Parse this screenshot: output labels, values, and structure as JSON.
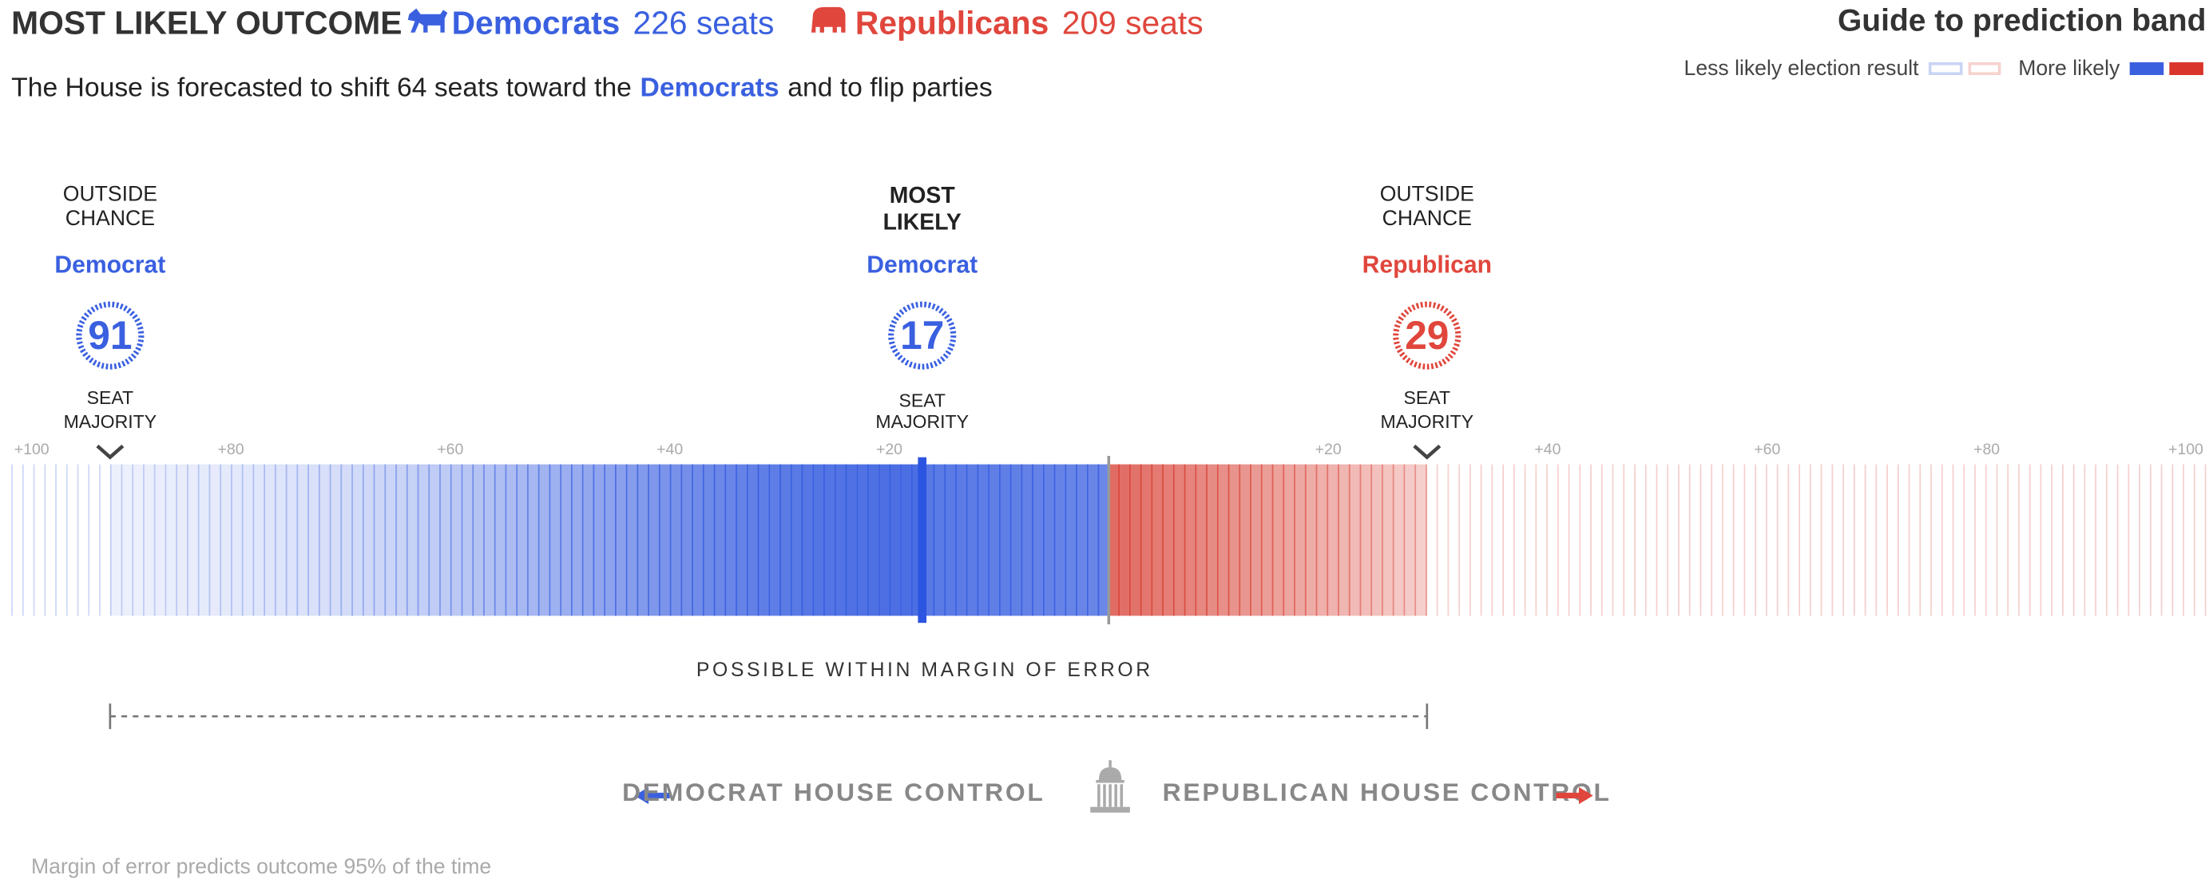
{
  "header": {
    "label": "MOST LIKELY OUTCOME",
    "dem_party": "Democrats",
    "dem_seats": "226 seats",
    "rep_party": "Republicans",
    "rep_seats": "209 seats"
  },
  "subtitle": {
    "before": "The House is forecasted to shift 64 seats toward the",
    "party": "Democrats",
    "after": "and to flip parties"
  },
  "guide": {
    "title": "Guide to prediction band",
    "less": "Less likely election result",
    "more": "More likely"
  },
  "markers": [
    {
      "heading": [
        "OUTSIDE",
        "CHANCE"
      ],
      "party": "Democrat",
      "side": "dem",
      "value": 91,
      "caption": [
        "SEAT",
        "MAJORITY"
      ]
    },
    {
      "heading": [
        "MOST",
        "LIKELY"
      ],
      "party": "Democrat",
      "side": "dem",
      "value": 17,
      "caption": [
        "SEAT",
        "MAJORITY"
      ]
    },
    {
      "heading": [
        "OUTSIDE",
        "CHANCE"
      ],
      "party": "Republican",
      "side": "rep",
      "value": 29,
      "caption": [
        "SEAT",
        "MAJORITY"
      ]
    }
  ],
  "dem_ticks": [
    {
      "value": 100,
      "label": "+100"
    },
    {
      "value": 80,
      "label": "+80"
    },
    {
      "value": 60,
      "label": "+60"
    },
    {
      "value": 40,
      "label": "+40"
    },
    {
      "value": 20,
      "label": "+20"
    }
  ],
  "rep_ticks": [
    {
      "value": 20,
      "label": "+20"
    },
    {
      "value": 40,
      "label": "+40"
    },
    {
      "value": 60,
      "label": "+60"
    },
    {
      "value": 80,
      "label": "+80"
    },
    {
      "value": 100,
      "label": "+100"
    }
  ],
  "margin_label": "POSSIBLE WITHIN MARGIN OF ERROR",
  "control": {
    "dem": "DEMOCRAT HOUSE CONTROL",
    "rep": "REPUBLICAN HOUSE CONTROL"
  },
  "footnote": "Margin of error predicts outcome 95% of the time"
}
